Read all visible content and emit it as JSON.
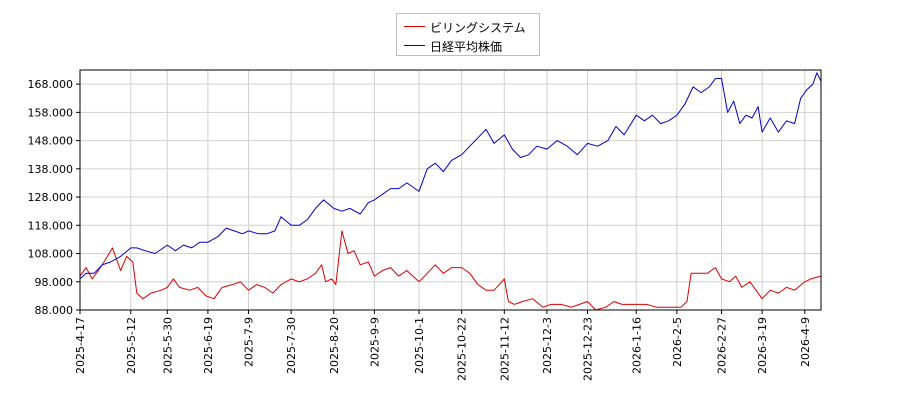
{
  "chart_data": {
    "type": "line",
    "legend_position": "top-center",
    "grid": true,
    "ylim": [
      88,
      173
    ],
    "xlim": [
      "2025-04-17",
      "2026-04-17"
    ],
    "y_ticks": [
      "88.000",
      "98.000",
      "108.000",
      "118.000",
      "128.000",
      "138.000",
      "148.000",
      "158.000",
      "168.000"
    ],
    "x_ticks": [
      "2025-4-17",
      "2025-5-12",
      "2025-5-30",
      "2025-6-19",
      "2025-7-9",
      "2025-7-30",
      "2025-8-20",
      "2025-9-9",
      "2025-10-1",
      "2025-10-22",
      "2025-11-12",
      "2025-12-3",
      "2025-12-23",
      "2026-1-16",
      "2026-2-5",
      "2026-2-27",
      "2026-3-19",
      "2026-4-9"
    ],
    "series": [
      {
        "name": "ビリングシステム",
        "color": "#dd0000",
        "points": [
          [
            "2025-04-17",
            100
          ],
          [
            "2025-04-20",
            103
          ],
          [
            "2025-04-23",
            99
          ],
          [
            "2025-04-28",
            104
          ],
          [
            "2025-05-03",
            110
          ],
          [
            "2025-05-07",
            102
          ],
          [
            "2025-05-10",
            107
          ],
          [
            "2025-05-13",
            105
          ],
          [
            "2025-05-15",
            94
          ],
          [
            "2025-05-18",
            92
          ],
          [
            "2025-05-22",
            94
          ],
          [
            "2025-05-27",
            95
          ],
          [
            "2025-05-30",
            96
          ],
          [
            "2025-06-02",
            99
          ],
          [
            "2025-06-05",
            96
          ],
          [
            "2025-06-10",
            95
          ],
          [
            "2025-06-14",
            96
          ],
          [
            "2025-06-18",
            93
          ],
          [
            "2025-06-22",
            92
          ],
          [
            "2025-06-26",
            96
          ],
          [
            "2025-07-01",
            97
          ],
          [
            "2025-07-05",
            98
          ],
          [
            "2025-07-09",
            95
          ],
          [
            "2025-07-13",
            97
          ],
          [
            "2025-07-17",
            96
          ],
          [
            "2025-07-21",
            94
          ],
          [
            "2025-07-25",
            97
          ],
          [
            "2025-07-30",
            99
          ],
          [
            "2025-08-03",
            98
          ],
          [
            "2025-08-07",
            99
          ],
          [
            "2025-08-11",
            101
          ],
          [
            "2025-08-14",
            104
          ],
          [
            "2025-08-16",
            98
          ],
          [
            "2025-08-19",
            99
          ],
          [
            "2025-08-21",
            97
          ],
          [
            "2025-08-24",
            116
          ],
          [
            "2025-08-27",
            108
          ],
          [
            "2025-08-30",
            109
          ],
          [
            "2025-09-02",
            104
          ],
          [
            "2025-09-06",
            105
          ],
          [
            "2025-09-09",
            100
          ],
          [
            "2025-09-13",
            102
          ],
          [
            "2025-09-17",
            103
          ],
          [
            "2025-09-21",
            100
          ],
          [
            "2025-09-25",
            102
          ],
          [
            "2025-10-01",
            98
          ],
          [
            "2025-10-05",
            101
          ],
          [
            "2025-10-09",
            104
          ],
          [
            "2025-10-13",
            101
          ],
          [
            "2025-10-17",
            103
          ],
          [
            "2025-10-22",
            103
          ],
          [
            "2025-10-26",
            101
          ],
          [
            "2025-10-30",
            97
          ],
          [
            "2025-11-03",
            95
          ],
          [
            "2025-11-07",
            95
          ],
          [
            "2025-11-12",
            99
          ],
          [
            "2025-11-14",
            91
          ],
          [
            "2025-11-17",
            90
          ],
          [
            "2025-11-21",
            91
          ],
          [
            "2025-11-26",
            92
          ],
          [
            "2025-12-01",
            89
          ],
          [
            "2025-12-05",
            90
          ],
          [
            "2025-12-10",
            90
          ],
          [
            "2025-12-15",
            89
          ],
          [
            "2025-12-19",
            90
          ],
          [
            "2025-12-23",
            91
          ],
          [
            "2025-12-27",
            88
          ],
          [
            "2026-01-01",
            89
          ],
          [
            "2026-01-05",
            91
          ],
          [
            "2026-01-09",
            90
          ],
          [
            "2026-01-16",
            90
          ],
          [
            "2026-01-21",
            90
          ],
          [
            "2026-01-26",
            89
          ],
          [
            "2026-01-30",
            89
          ],
          [
            "2026-02-03",
            89
          ],
          [
            "2026-02-07",
            89
          ],
          [
            "2026-02-10",
            91
          ],
          [
            "2026-02-12",
            101
          ],
          [
            "2026-02-16",
            101
          ],
          [
            "2026-02-20",
            101
          ],
          [
            "2026-02-24",
            103
          ],
          [
            "2026-02-27",
            99
          ],
          [
            "2026-03-03",
            98
          ],
          [
            "2026-03-06",
            100
          ],
          [
            "2026-03-09",
            96
          ],
          [
            "2026-03-13",
            98
          ],
          [
            "2026-03-16",
            95
          ],
          [
            "2026-03-19",
            92
          ],
          [
            "2026-03-23",
            95
          ],
          [
            "2026-03-27",
            94
          ],
          [
            "2026-03-31",
            96
          ],
          [
            "2026-04-04",
            95
          ],
          [
            "2026-04-09",
            98
          ],
          [
            "2026-04-12",
            99
          ],
          [
            "2026-04-17",
            100
          ]
        ]
      },
      {
        "name": "日経平均株価",
        "color": "#0000cc",
        "points": [
          [
            "2025-04-17",
            99
          ],
          [
            "2025-04-20",
            101
          ],
          [
            "2025-04-24",
            101
          ],
          [
            "2025-04-28",
            104
          ],
          [
            "2025-05-02",
            105
          ],
          [
            "2025-05-07",
            107
          ],
          [
            "2025-05-12",
            110
          ],
          [
            "2025-05-15",
            110
          ],
          [
            "2025-05-19",
            109
          ],
          [
            "2025-05-24",
            108
          ],
          [
            "2025-05-30",
            111
          ],
          [
            "2025-06-03",
            109
          ],
          [
            "2025-06-07",
            111
          ],
          [
            "2025-06-11",
            110
          ],
          [
            "2025-06-15",
            112
          ],
          [
            "2025-06-19",
            112
          ],
          [
            "2025-06-24",
            114
          ],
          [
            "2025-06-28",
            117
          ],
          [
            "2025-07-02",
            116
          ],
          [
            "2025-07-06",
            115
          ],
          [
            "2025-07-09",
            116
          ],
          [
            "2025-07-14",
            115
          ],
          [
            "2025-07-18",
            115
          ],
          [
            "2025-07-22",
            116
          ],
          [
            "2025-07-25",
            121
          ],
          [
            "2025-07-30",
            118
          ],
          [
            "2025-08-03",
            118
          ],
          [
            "2025-08-07",
            120
          ],
          [
            "2025-08-11",
            124
          ],
          [
            "2025-08-15",
            127
          ],
          [
            "2025-08-20",
            124
          ],
          [
            "2025-08-24",
            123
          ],
          [
            "2025-08-28",
            124
          ],
          [
            "2025-09-02",
            122
          ],
          [
            "2025-09-06",
            126
          ],
          [
            "2025-09-09",
            127
          ],
          [
            "2025-09-13",
            129
          ],
          [
            "2025-09-17",
            131
          ],
          [
            "2025-09-21",
            131
          ],
          [
            "2025-09-25",
            133
          ],
          [
            "2025-10-01",
            130
          ],
          [
            "2025-10-05",
            138
          ],
          [
            "2025-10-09",
            140
          ],
          [
            "2025-10-13",
            137
          ],
          [
            "2025-10-17",
            141
          ],
          [
            "2025-10-22",
            143
          ],
          [
            "2025-10-26",
            146
          ],
          [
            "2025-10-30",
            149
          ],
          [
            "2025-11-03",
            152
          ],
          [
            "2025-11-07",
            147
          ],
          [
            "2025-11-12",
            150
          ],
          [
            "2025-11-16",
            145
          ],
          [
            "2025-11-20",
            142
          ],
          [
            "2025-11-24",
            143
          ],
          [
            "2025-11-28",
            146
          ],
          [
            "2025-12-03",
            145
          ],
          [
            "2025-12-08",
            148
          ],
          [
            "2025-12-13",
            146
          ],
          [
            "2025-12-18",
            143
          ],
          [
            "2025-12-23",
            147
          ],
          [
            "2025-12-28",
            146
          ],
          [
            "2026-01-02",
            148
          ],
          [
            "2026-01-06",
            153
          ],
          [
            "2026-01-10",
            150
          ],
          [
            "2026-01-16",
            157
          ],
          [
            "2026-01-20",
            155
          ],
          [
            "2026-01-24",
            157
          ],
          [
            "2026-01-28",
            154
          ],
          [
            "2026-02-01",
            155
          ],
          [
            "2026-02-05",
            157
          ],
          [
            "2026-02-09",
            161
          ],
          [
            "2026-02-13",
            167
          ],
          [
            "2026-02-17",
            165
          ],
          [
            "2026-02-21",
            167
          ],
          [
            "2026-02-24",
            170
          ],
          [
            "2026-02-27",
            170
          ],
          [
            "2026-03-02",
            158
          ],
          [
            "2026-03-05",
            162
          ],
          [
            "2026-03-08",
            154
          ],
          [
            "2026-03-11",
            157
          ],
          [
            "2026-03-14",
            156
          ],
          [
            "2026-03-17",
            160
          ],
          [
            "2026-03-19",
            151
          ],
          [
            "2026-03-23",
            156
          ],
          [
            "2026-03-27",
            151
          ],
          [
            "2026-03-31",
            155
          ],
          [
            "2026-04-04",
            154
          ],
          [
            "2026-04-07",
            163
          ],
          [
            "2026-04-10",
            166
          ],
          [
            "2026-04-13",
            168
          ],
          [
            "2026-04-15",
            172
          ],
          [
            "2026-04-17",
            169
          ]
        ]
      }
    ]
  }
}
